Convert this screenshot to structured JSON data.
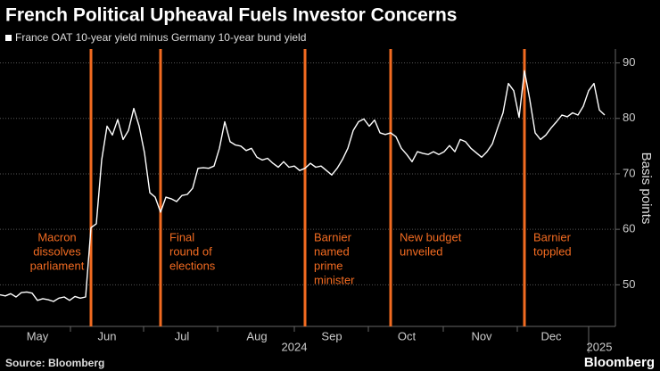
{
  "chart_data": {
    "type": "line",
    "title": "French Political Upheaval Fuels Investor Concerns",
    "y_axis_label": "Basis points",
    "source": "Source: Bloomberg",
    "logo": "Bloomberg",
    "series": [
      {
        "name": "France OAT 10-year yield minus Germany 10-year bund yield",
        "color": "#ffffff",
        "values": [
          48.2,
          48.0,
          48.4,
          47.8,
          48.6,
          48.7,
          48.5,
          47.2,
          47.5,
          47.3,
          47.0,
          47.6,
          47.8,
          47.2,
          47.9,
          47.6,
          47.8,
          60.3,
          61.0,
          72.5,
          78.6,
          77.0,
          79.8,
          76.2,
          77.8,
          81.8,
          78.6,
          73.8,
          66.6,
          65.8,
          63.1,
          65.8,
          65.5,
          65.0,
          66.1,
          66.3,
          67.4,
          71.0,
          71.1,
          71.0,
          71.4,
          74.6,
          79.4,
          75.8,
          75.2,
          75.0,
          74.2,
          74.6,
          73.0,
          72.5,
          72.8,
          71.9,
          71.2,
          72.2,
          71.2,
          71.4,
          70.6,
          71.0,
          71.9,
          71.2,
          71.4,
          70.6,
          69.8,
          71.0,
          72.6,
          74.6,
          77.8,
          79.4,
          79.9,
          78.6,
          79.7,
          77.4,
          77.1,
          77.4,
          76.7,
          74.6,
          73.5,
          72.2,
          74.0,
          73.7,
          73.5,
          74.0,
          73.5,
          74.0,
          75.1,
          74.0,
          76.2,
          75.8,
          74.6,
          73.8,
          73.0,
          74.0,
          75.4,
          78.3,
          81.0,
          86.3,
          85.0,
          80.2,
          88.6,
          83.4,
          77.4,
          76.2,
          77.0,
          78.3,
          79.4,
          80.6,
          80.3,
          81.0,
          80.6,
          82.2,
          85.0,
          86.3,
          81.5,
          80.6
        ]
      }
    ],
    "categories": [
      null,
      null,
      null,
      null,
      null,
      null,
      null,
      "May",
      null,
      null,
      null,
      null,
      null,
      null,
      null,
      null,
      null,
      null,
      null,
      null,
      "Jun",
      null,
      null,
      null,
      null,
      null,
      null,
      null,
      null,
      null,
      null,
      null,
      null,
      null,
      "Jul",
      null,
      null,
      null,
      null,
      null,
      null,
      null,
      null,
      null,
      null,
      null,
      null,
      null,
      "Aug",
      null,
      null,
      null,
      null,
      null,
      null,
      null,
      null,
      null,
      null,
      null,
      null,
      null,
      "Sep",
      null,
      null,
      null,
      null,
      null,
      null,
      null,
      null,
      null,
      null,
      null,
      null,
      null,
      "Oct",
      null,
      null,
      null,
      null,
      null,
      null,
      null,
      null,
      null,
      null,
      null,
      null,
      null,
      "Nov",
      null,
      null,
      null,
      null,
      null,
      null,
      null,
      null,
      null,
      null,
      null,
      null,
      "Dec",
      null,
      null,
      null,
      null,
      null,
      null,
      null,
      null,
      null,
      null
    ],
    "year_labels": [
      null,
      null,
      null,
      null,
      null,
      null,
      null,
      null,
      null,
      null,
      null,
      null,
      null,
      null,
      null,
      null,
      null,
      null,
      null,
      null,
      null,
      null,
      null,
      null,
      null,
      null,
      null,
      null,
      null,
      null,
      null,
      null,
      null,
      null,
      null,
      null,
      null,
      null,
      null,
      null,
      null,
      null,
      null,
      null,
      null,
      null,
      null,
      null,
      null,
      null,
      null,
      null,
      null,
      null,
      null,
      "2024",
      null,
      null,
      null,
      null,
      null,
      null,
      null,
      null,
      null,
      null,
      null,
      null,
      null,
      null,
      null,
      null,
      null,
      null,
      null,
      null,
      null,
      null,
      null,
      null,
      null,
      null,
      null,
      null,
      null,
      null,
      null,
      null,
      null,
      null,
      null,
      null,
      null,
      null,
      null,
      null,
      null,
      null,
      null,
      null,
      null,
      null,
      null,
      null,
      null,
      null,
      null,
      null,
      null,
      null,
      null,
      null,
      "2025",
      null
    ],
    "annotations": [
      null,
      null,
      null,
      null,
      null,
      null,
      null,
      null,
      null,
      null,
      null,
      null,
      null,
      null,
      null,
      null,
      null,
      [
        "Macron",
        "dissolves",
        "parliament"
      ],
      null,
      null,
      null,
      null,
      null,
      null,
      null,
      null,
      null,
      null,
      null,
      null,
      [
        "Final",
        "round of",
        "elections"
      ],
      null,
      null,
      null,
      null,
      null,
      null,
      null,
      null,
      null,
      null,
      null,
      null,
      null,
      null,
      null,
      null,
      null,
      null,
      null,
      null,
      null,
      null,
      null,
      null,
      null,
      null,
      [
        "Barnier",
        "named",
        "prime",
        "minister"
      ],
      null,
      null,
      null,
      null,
      null,
      null,
      null,
      null,
      null,
      null,
      null,
      null,
      null,
      null,
      null,
      [
        "New budget",
        "unveiled"
      ],
      null,
      null,
      null,
      null,
      null,
      null,
      null,
      null,
      null,
      null,
      null,
      null,
      null,
      null,
      null,
      null,
      null,
      null,
      null,
      null,
      null,
      null,
      null,
      null,
      [
        "Barnier",
        "toppled"
      ],
      null,
      null,
      null,
      null,
      null,
      null,
      null,
      null,
      null,
      null,
      null,
      null,
      null,
      null,
      null
    ],
    "annotation_color": "#f26b21",
    "ylim": [
      42.5,
      92.5
    ],
    "yticks": [
      50,
      60,
      70,
      80,
      90
    ],
    "grid": true
  }
}
